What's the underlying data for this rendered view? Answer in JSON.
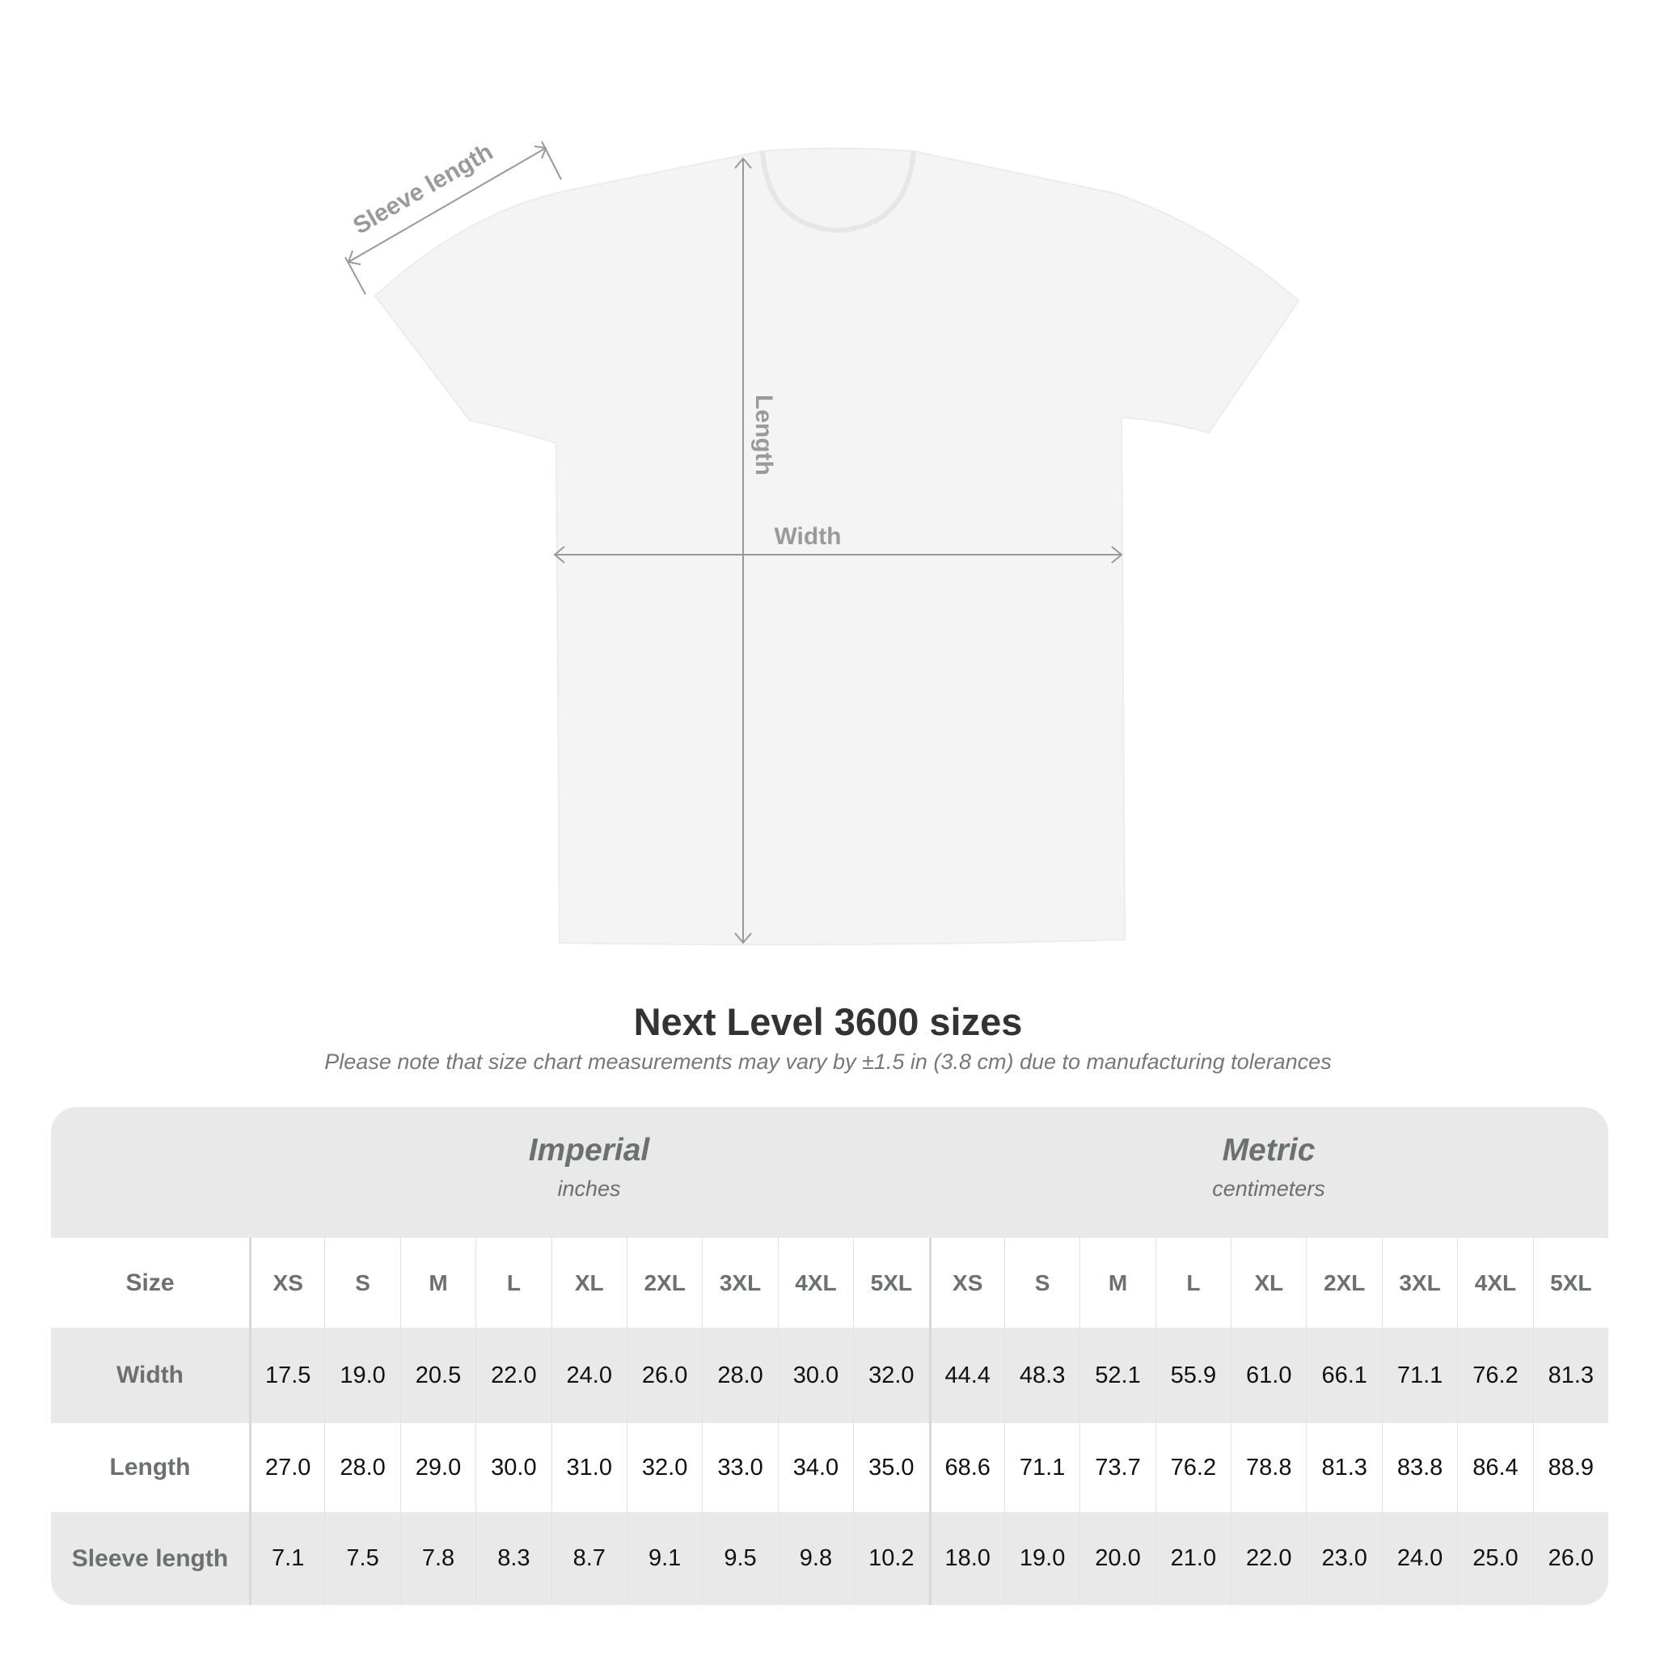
{
  "diagram": {
    "sleeve_label": "Sleeve length",
    "length_label": "Length",
    "width_label": "Width",
    "shirt_color": "#f4f4f4",
    "line_color": "#999999"
  },
  "title": "Next Level 3600 sizes",
  "subtitle": "Please note that size chart measurements may vary by ±1.5 in (3.8 cm) due to manufacturing tolerances",
  "table": {
    "imperial": {
      "name": "Imperial",
      "unit": "inches"
    },
    "metric": {
      "name": "Metric",
      "unit": "centimeters"
    },
    "size_label": "Size",
    "sizes": [
      "XS",
      "S",
      "M",
      "L",
      "XL",
      "2XL",
      "3XL",
      "4XL",
      "5XL"
    ],
    "rows": [
      {
        "label": "Width",
        "imperial": [
          "17.5",
          "19.0",
          "20.5",
          "22.0",
          "24.0",
          "26.0",
          "28.0",
          "30.0",
          "32.0"
        ],
        "metric": [
          "44.4",
          "48.3",
          "52.1",
          "55.9",
          "61.0",
          "66.1",
          "71.1",
          "76.2",
          "81.3"
        ]
      },
      {
        "label": "Length",
        "imperial": [
          "27.0",
          "28.0",
          "29.0",
          "30.0",
          "31.0",
          "32.0",
          "33.0",
          "34.0",
          "35.0"
        ],
        "metric": [
          "68.6",
          "71.1",
          "73.7",
          "76.2",
          "78.8",
          "81.3",
          "83.8",
          "86.4",
          "88.9"
        ]
      },
      {
        "label": "Sleeve length",
        "imperial": [
          "7.1",
          "7.5",
          "7.8",
          "8.3",
          "8.7",
          "9.1",
          "9.5",
          "9.8",
          "10.2"
        ],
        "metric": [
          "18.0",
          "19.0",
          "20.0",
          "21.0",
          "22.0",
          "23.0",
          "24.0",
          "25.0",
          "26.0"
        ]
      }
    ]
  }
}
